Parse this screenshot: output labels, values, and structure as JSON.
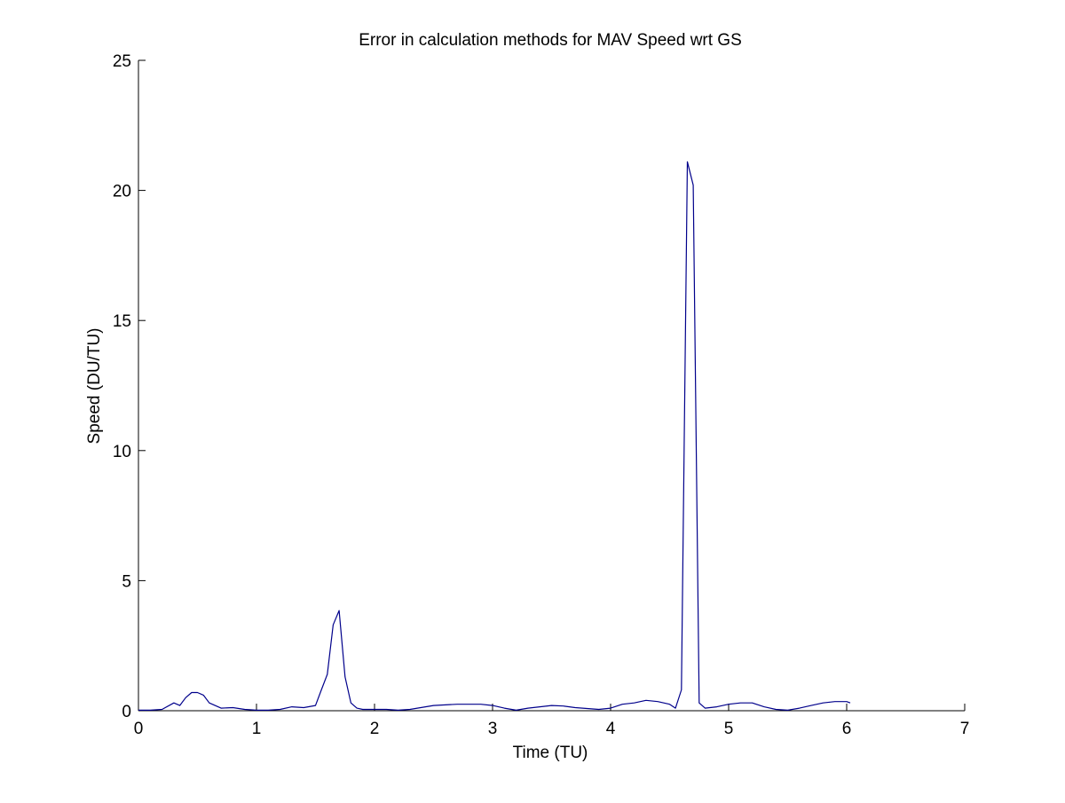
{
  "chart_data": {
    "type": "line",
    "title": "Error in calculation methods for MAV Speed wrt GS",
    "xlabel": "Time (TU)",
    "ylabel": "Speed (DU/TU)",
    "xlim": [
      0,
      7
    ],
    "ylim": [
      0,
      25
    ],
    "xticks": [
      0,
      1,
      2,
      3,
      4,
      5,
      6,
      7
    ],
    "yticks": [
      0,
      5,
      10,
      15,
      20,
      25
    ],
    "xtick_labels": [
      "0",
      "1",
      "2",
      "3",
      "4",
      "5",
      "6",
      "7"
    ],
    "ytick_labels": [
      "0",
      "5",
      "10",
      "15",
      "20",
      "25"
    ],
    "grid": false,
    "line_color": "#00008b",
    "series": [
      {
        "x": [
          0,
          0.1,
          0.2,
          0.3,
          0.35,
          0.4,
          0.45,
          0.5,
          0.55,
          0.6,
          0.7,
          0.8,
          0.9,
          1.0,
          1.1,
          1.2,
          1.3,
          1.4,
          1.5,
          1.55,
          1.6,
          1.65,
          1.7,
          1.75,
          1.8,
          1.85,
          1.9,
          2.0,
          2.1,
          2.2,
          2.3,
          2.5,
          2.7,
          2.9,
          3.0,
          3.1,
          3.2,
          3.3,
          3.5,
          3.6,
          3.7,
          3.9,
          4.0,
          4.1,
          4.2,
          4.3,
          4.4,
          4.5,
          4.55,
          4.6,
          4.65,
          4.7,
          4.75,
          4.8,
          4.9,
          5.0,
          5.1,
          5.2,
          5.3,
          5.4,
          5.5,
          5.6,
          5.7,
          5.8,
          5.9,
          6.0,
          6.03
        ],
        "y": [
          0.02,
          0.02,
          0.05,
          0.3,
          0.2,
          0.5,
          0.7,
          0.7,
          0.6,
          0.3,
          0.1,
          0.12,
          0.05,
          0.02,
          0.02,
          0.05,
          0.15,
          0.12,
          0.2,
          0.8,
          1.4,
          3.3,
          3.85,
          1.3,
          0.3,
          0.1,
          0.05,
          0.05,
          0.05,
          0.02,
          0.05,
          0.2,
          0.25,
          0.25,
          0.2,
          0.1,
          0.02,
          0.1,
          0.2,
          0.18,
          0.12,
          0.05,
          0.1,
          0.25,
          0.3,
          0.4,
          0.35,
          0.25,
          0.1,
          0.8,
          21.1,
          20.2,
          0.3,
          0.1,
          0.15,
          0.25,
          0.3,
          0.3,
          0.15,
          0.05,
          0.02,
          0.1,
          0.2,
          0.3,
          0.35,
          0.35,
          0.3
        ]
      }
    ]
  }
}
